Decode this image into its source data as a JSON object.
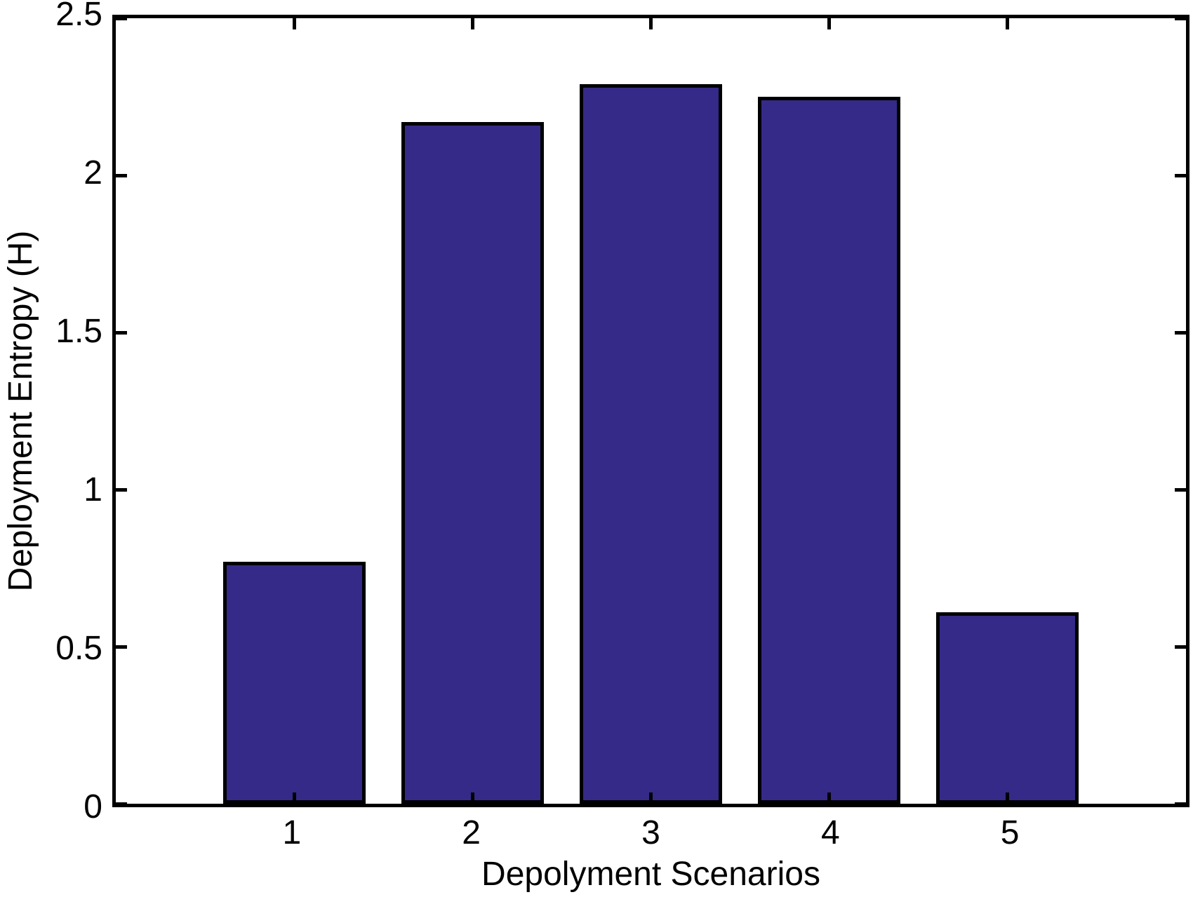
{
  "chart_data": {
    "type": "bar",
    "title": "",
    "categories": [
      "1",
      "2",
      "3",
      "4",
      "5"
    ],
    "values": [
      0.77,
      2.17,
      2.29,
      2.25,
      0.61
    ],
    "xlabel": "Depolyment Scenarios",
    "ylabel": "Deployment Entropy (H)",
    "xlim": [
      0,
      6
    ],
    "ylim": [
      0,
      2.5
    ],
    "yticks": [
      0,
      0.5,
      1,
      1.5,
      2,
      2.5
    ],
    "ytick_labels": [
      "0",
      "0.5",
      "1",
      "1.5",
      "2",
      "2.5"
    ],
    "xtick_labels": [
      "1",
      "2",
      "3",
      "4",
      "5"
    ],
    "bar_width_fraction": 0.8,
    "bar_color": "#352a87",
    "bar_edge_color": "#000000",
    "axis_color": "#000000",
    "background_color": "#ffffff",
    "grid": false,
    "legend": null
  }
}
